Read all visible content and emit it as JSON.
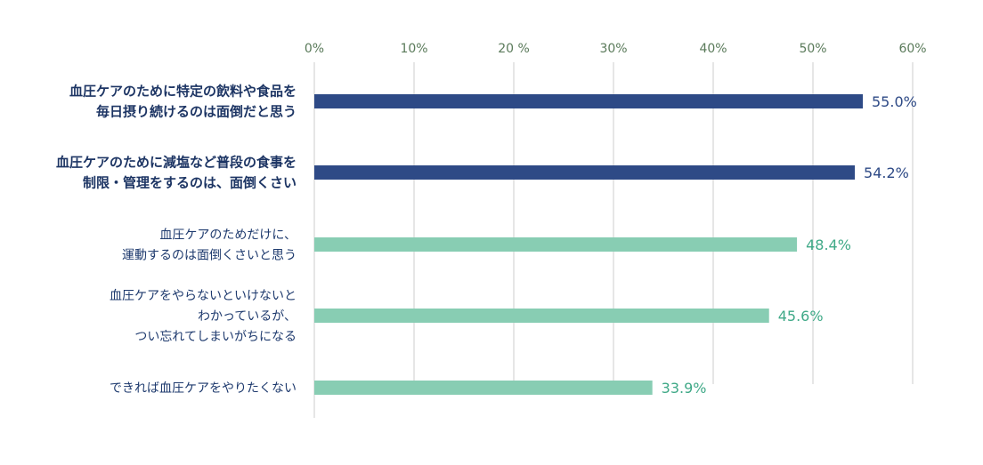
{
  "chart_data": {
    "type": "bar",
    "orientation": "horizontal",
    "xlim": [
      0,
      60
    ],
    "ticks": [
      {
        "value": 0,
        "label": "0%"
      },
      {
        "value": 10,
        "label": "10%"
      },
      {
        "value": 20,
        "label": "20 %"
      },
      {
        "value": 30,
        "label": "30%"
      },
      {
        "value": 40,
        "label": "40%"
      },
      {
        "value": 50,
        "label": "50%"
      },
      {
        "value": 60,
        "label": "60%"
      }
    ],
    "grid": true,
    "categories": [
      {
        "lines": [
          "血圧ケアのために特定の飲料や食品を",
          "毎日摂り続けるのは面倒だと思う"
        ],
        "value": 55.0,
        "label": "55.0%",
        "highlight": true
      },
      {
        "lines": [
          "血圧ケアのために減塩など普段の食事を",
          "制限・管理をするのは、面倒くさい"
        ],
        "value": 54.2,
        "label": "54.2%",
        "highlight": true
      },
      {
        "lines": [
          "血圧ケアのためだけに、",
          "運動するのは面倒くさいと思う"
        ],
        "value": 48.4,
        "label": "48.4%",
        "highlight": false
      },
      {
        "lines": [
          "血圧ケアをやらないといけないと",
          "わかっているが、",
          "つい忘れてしまいがちになる"
        ],
        "value": 45.6,
        "label": "45.6%",
        "highlight": false
      },
      {
        "lines": [
          "できれば血圧ケアをやりたくない"
        ],
        "value": 33.9,
        "label": "33.9%",
        "highlight": false
      }
    ],
    "colors": {
      "highlight_bar": "#2e4a86",
      "normal_bar": "#88cdb3",
      "highlight_text": "#1d3564",
      "normal_text": "#1e3a6e",
      "highlight_value": "#2e4a86",
      "normal_value": "#3fa987",
      "tick_text": "#5a7a5a",
      "grid": "#cccccc"
    }
  }
}
